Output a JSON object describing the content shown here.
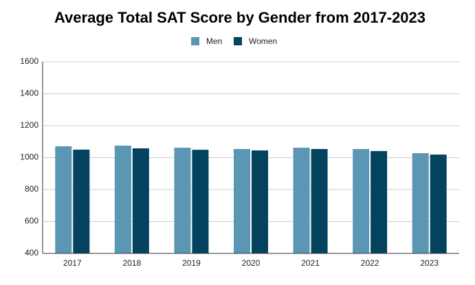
{
  "chart_data": {
    "type": "bar",
    "title": "Average Total SAT Score by Gender from 2017-2023",
    "categories": [
      "2017",
      "2018",
      "2019",
      "2020",
      "2021",
      "2022",
      "2023"
    ],
    "series": [
      {
        "name": "Men",
        "color": "#5b96b5",
        "values": [
          1071,
          1075,
          1062,
          1054,
          1062,
          1054,
          1028
        ]
      },
      {
        "name": "Women",
        "color": "#03435f",
        "values": [
          1050,
          1058,
          1049,
          1045,
          1054,
          1041,
          1019
        ]
      }
    ],
    "ylim": [
      400,
      1600
    ],
    "yticks": [
      400,
      600,
      800,
      1000,
      1200,
      1400,
      1600
    ],
    "grid": true,
    "legend": "top"
  }
}
